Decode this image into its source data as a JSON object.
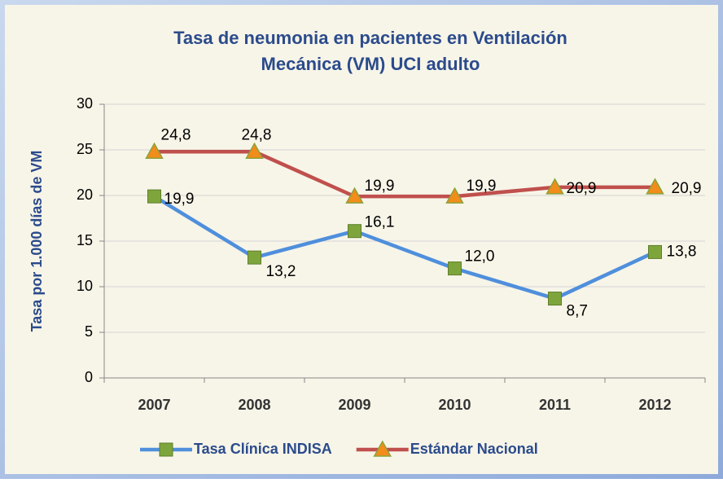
{
  "chart_data": {
    "type": "line",
    "title": [
      "Tasa de neumonia en pacientes en Ventilación",
      "Mecánica (VM) UCI adulto"
    ],
    "y_label": "Tasa por 1.000 días de VM",
    "categories": [
      "2007",
      "2008",
      "2009",
      "2010",
      "2011",
      "2012"
    ],
    "series": [
      {
        "name": "Tasa Clínica INDISA",
        "color": "#4f8fdc",
        "marker": "square",
        "marker_color": "#7ea53c",
        "values": [
          19.9,
          13.2,
          16.1,
          12.0,
          8.7,
          13.8
        ],
        "value_labels": [
          "19,9",
          "13,2",
          "16,1",
          "12,0",
          "8,7",
          "13,8"
        ]
      },
      {
        "name": "Estándar Nacional",
        "color": "#c0504d",
        "marker": "triangle",
        "marker_color": "#f28c1b",
        "values": [
          24.8,
          24.8,
          19.9,
          19.9,
          20.9,
          20.9
        ],
        "value_labels": [
          "24,8",
          "24,8",
          "19,9",
          "19,9",
          "20,9",
          "20,9"
        ]
      }
    ],
    "ylim": [
      0,
      30
    ],
    "yticks": [
      0,
      5,
      10,
      15,
      20,
      25,
      30
    ],
    "grid": true,
    "legend": "bottom"
  }
}
